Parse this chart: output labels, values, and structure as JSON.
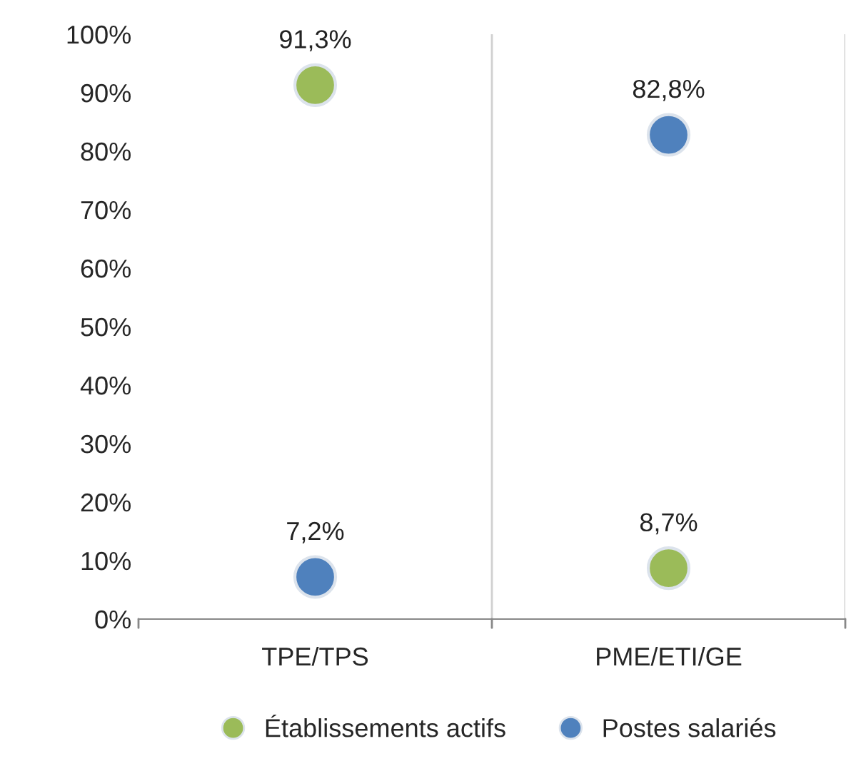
{
  "chart_data": {
    "type": "scatter",
    "categories": [
      "TPE/TPS",
      "PME/ETI/GE"
    ],
    "series": [
      {
        "name": "Établissements actifs",
        "color": "#9bbb59",
        "values": [
          91.3,
          8.7
        ],
        "value_labels": [
          "91,3%",
          "8,7%"
        ]
      },
      {
        "name": "Postes salariés",
        "color": "#4f81bd",
        "values": [
          7.2,
          82.8
        ],
        "value_labels": [
          "7,2%",
          "82,8%"
        ]
      }
    ],
    "ylim": [
      0,
      100
    ],
    "yticks": [
      {
        "value": 0,
        "label": "0%"
      },
      {
        "value": 10,
        "label": "10%"
      },
      {
        "value": 20,
        "label": "20%"
      },
      {
        "value": 30,
        "label": "30%"
      },
      {
        "value": 40,
        "label": "40%"
      },
      {
        "value": 50,
        "label": "50%"
      },
      {
        "value": 60,
        "label": "60%"
      },
      {
        "value": 70,
        "label": "70%"
      },
      {
        "value": 80,
        "label": "80%"
      },
      {
        "value": 90,
        "label": "90%"
      },
      {
        "value": 100,
        "label": "100%"
      }
    ],
    "grid": "x",
    "legend": "bottom",
    "marker": "circle"
  }
}
